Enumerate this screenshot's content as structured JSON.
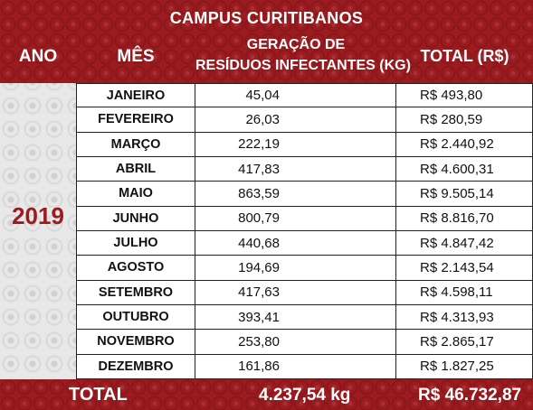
{
  "title": "CAMPUS CURITIBANOS",
  "headers": {
    "ano": "ANO",
    "mes": "MÊS",
    "geracao_line1": "GERAÇÃO DE",
    "geracao_line2": "RESÍDUOS INFECTANTES (KG)",
    "total": "TOTAL (R$)"
  },
  "year": "2019",
  "rows": [
    {
      "mes": "JANEIRO",
      "geracao": "45,04",
      "total": "R$ 493,80"
    },
    {
      "mes": "FEVEREIRO",
      "geracao": "26,03",
      "total": "R$ 280,59"
    },
    {
      "mes": "MARÇO",
      "geracao": "222,19",
      "total": "R$ 2.440,92"
    },
    {
      "mes": "ABRIL",
      "geracao": "417,83",
      "total": "R$ 4.600,31"
    },
    {
      "mes": "MAIO",
      "geracao": "863,59",
      "total": "R$ 9.505,14"
    },
    {
      "mes": "JUNHO",
      "geracao": "800,79",
      "total": "R$ 8.816,70"
    },
    {
      "mes": "JULHO",
      "geracao": "440,68",
      "total": "R$ 4.847,42"
    },
    {
      "mes": "AGOSTO",
      "geracao": "194,69",
      "total": "R$ 2.143,54"
    },
    {
      "mes": "SETEMBRO",
      "geracao": "417,63",
      "total": "R$ 4.598,11"
    },
    {
      "mes": "OUTUBRO",
      "geracao": "393,41",
      "total": "R$ 4.313,93"
    },
    {
      "mes": "NOVEMBRO",
      "geracao": "253,80",
      "total": "R$ 2.865,17"
    },
    {
      "mes": "DEZEMBRO",
      "geracao": "161,86",
      "total": "R$ 1.827,25"
    }
  ],
  "footer": {
    "label": "TOTAL",
    "geracao": "4.237,54 kg",
    "total": "R$ 46.732,87"
  },
  "colors": {
    "header_red": "#9b1b1f",
    "year_red": "#9b1b1f",
    "pattern_gray": "#e8e8e8"
  }
}
